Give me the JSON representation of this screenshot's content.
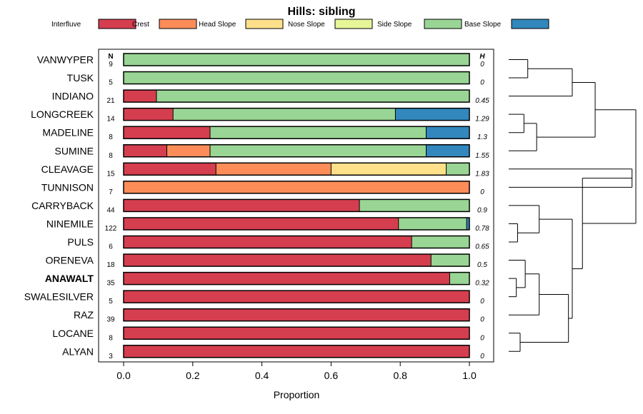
{
  "chart_data": {
    "type": "bar",
    "stacked": true,
    "orientation": "horizontal",
    "title": "Hills: sibling",
    "xlabel": "Proportion",
    "ylabel": "",
    "xlim": [
      0,
      1
    ],
    "xticks": [
      0.0,
      0.2,
      0.4,
      0.6,
      0.8,
      1.0
    ],
    "xtick_labels": [
      "0.0",
      "0.2",
      "0.4",
      "0.6",
      "0.8",
      "1.0"
    ],
    "n_header": "N",
    "h_header": "H",
    "legend": [
      {
        "name": "Interfluve",
        "color": "#D53E4F"
      },
      {
        "name": "Crest",
        "color": "#FC8D59"
      },
      {
        "name": "Head Slope",
        "color": "#FEE08B"
      },
      {
        "name": "Nose Slope",
        "color": "#E6F598"
      },
      {
        "name": "Side Slope",
        "color": "#99D594"
      },
      {
        "name": "Base Slope",
        "color": "#3288BD"
      }
    ],
    "rows": [
      {
        "name": "VANWYPER",
        "bold": false,
        "n": "9",
        "h": "0",
        "values": [
          0,
          0,
          0,
          0,
          1.0,
          0
        ]
      },
      {
        "name": "TUSK",
        "bold": false,
        "n": "5",
        "h": "0",
        "values": [
          0,
          0,
          0,
          0,
          1.0,
          0
        ]
      },
      {
        "name": "INDIANO",
        "bold": false,
        "n": "21",
        "h": "0.45",
        "values": [
          0.095,
          0,
          0,
          0,
          0.905,
          0
        ]
      },
      {
        "name": "LONGCREEK",
        "bold": false,
        "n": "14",
        "h": "1.29",
        "values": [
          0.143,
          0,
          0,
          0,
          0.643,
          0.214
        ]
      },
      {
        "name": "MADELINE",
        "bold": false,
        "n": "8",
        "h": "1.3",
        "values": [
          0.25,
          0,
          0,
          0,
          0.625,
          0.125
        ]
      },
      {
        "name": "SUMINE",
        "bold": false,
        "n": "8",
        "h": "1.55",
        "values": [
          0.125,
          0.125,
          0,
          0,
          0.625,
          0.125
        ]
      },
      {
        "name": "CLEAVAGE",
        "bold": false,
        "n": "15",
        "h": "1.83",
        "values": [
          0.267,
          0.333,
          0.333,
          0,
          0.067,
          0
        ]
      },
      {
        "name": "TUNNISON",
        "bold": false,
        "n": "7",
        "h": "0",
        "values": [
          0,
          1.0,
          0,
          0,
          0,
          0
        ]
      },
      {
        "name": "CARRYBACK",
        "bold": false,
        "n": "44",
        "h": "0.9",
        "values": [
          0.682,
          0,
          0,
          0,
          0.318,
          0
        ]
      },
      {
        "name": "NINEMILE",
        "bold": false,
        "n": "122",
        "h": "0.78",
        "values": [
          0.795,
          0,
          0,
          0,
          0.197,
          0.008
        ]
      },
      {
        "name": "PULS",
        "bold": false,
        "n": "6",
        "h": "0.65",
        "values": [
          0.833,
          0,
          0,
          0,
          0.167,
          0
        ]
      },
      {
        "name": "ORENEVA",
        "bold": false,
        "n": "18",
        "h": "0.5",
        "values": [
          0.889,
          0,
          0,
          0,
          0.111,
          0
        ]
      },
      {
        "name": "ANAWALT",
        "bold": true,
        "n": "35",
        "h": "0.32",
        "values": [
          0.943,
          0,
          0,
          0,
          0.057,
          0
        ]
      },
      {
        "name": "SWALESILVER",
        "bold": false,
        "n": "5",
        "h": "0",
        "values": [
          1.0,
          0,
          0,
          0,
          0,
          0
        ]
      },
      {
        "name": "RAZ",
        "bold": false,
        "n": "39",
        "h": "0",
        "values": [
          1.0,
          0,
          0,
          0,
          0,
          0
        ]
      },
      {
        "name": "LOCANE",
        "bold": false,
        "n": "8",
        "h": "0",
        "values": [
          1.0,
          0,
          0,
          0,
          0,
          0
        ]
      },
      {
        "name": "ALYAN",
        "bold": false,
        "n": "3",
        "h": "0",
        "values": [
          1.0,
          0,
          0,
          0,
          0,
          0
        ]
      }
    ],
    "dendrogram": {
      "description": "Hierarchical clustering of row profiles; merge heights in relative units (0 = leaves, 1 = root).",
      "root": {
        "h": 1.0,
        "c": [
          {
            "h": 0.68,
            "c": [
              {
                "h": 0.5,
                "c": [
                  {
                    "h": 0.15,
                    "c": [
                      {
                        "leaf": 0
                      },
                      {
                        "leaf": 1
                      }
                    ]
                  },
                  {
                    "leaf": 2
                  }
                ]
              },
              {
                "h": 0.22,
                "c": [
                  {
                    "h": 0.12,
                    "c": [
                      {
                        "leaf": 3
                      },
                      {
                        "leaf": 4
                      }
                    ]
                  },
                  {
                    "leaf": 5
                  }
                ]
              }
            ]
          },
          {
            "h": 0.58,
            "c": [
              {
                "h": 0.97,
                "c": [
                  {
                    "leaf": 6
                  },
                  {
                    "leaf": 7
                  }
                ]
              },
              {
                "h": 0.5,
                "c": [
                  {
                    "h": 0.24,
                    "c": [
                      {
                        "leaf": 8
                      },
                      {
                        "h": 0.07,
                        "c": [
                          {
                            "leaf": 9
                          },
                          {
                            "leaf": 10
                          }
                        ]
                      }
                    ]
                  },
                  {
                    "h": 0.47,
                    "c": [
                      {
                        "h": 0.24,
                        "c": [
                          {
                            "h": 0.13,
                            "c": [
                              {
                                "leaf": 11
                              },
                              {
                                "h": 0.06,
                                "c": [
                                  {
                                    "leaf": 12
                                  },
                                  {
                                    "leaf": 13
                                  }
                                ]
                              }
                            ]
                          },
                          {
                            "leaf": 14
                          }
                        ]
                      },
                      {
                        "h": 0.09,
                        "c": [
                          {
                            "leaf": 15
                          },
                          {
                            "leaf": 16
                          }
                        ]
                      }
                    ]
                  }
                ]
              }
            ]
          }
        ]
      }
    }
  }
}
